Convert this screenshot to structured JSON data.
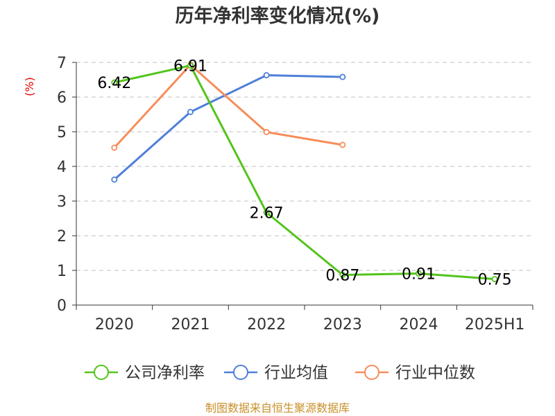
{
  "chart_data": {
    "type": "line",
    "title": "历年净利率变化情况(%)",
    "ylabel": "(%)",
    "categories": [
      "2020",
      "2021",
      "2022",
      "2023",
      "2024",
      "2025H1"
    ],
    "ylim": [
      0,
      7
    ],
    "yticks": [
      "0",
      "1",
      "2",
      "3",
      "4",
      "5",
      "6",
      "7"
    ],
    "grid": true,
    "legend_position": "bottom",
    "series": [
      {
        "name": "公司净利率",
        "color": "#52c41a",
        "values": [
          6.42,
          6.91,
          2.67,
          0.87,
          0.91,
          0.75
        ],
        "labels": [
          "6.42",
          "6.91",
          "2.67",
          "0.87",
          "0.91",
          "0.75"
        ]
      },
      {
        "name": "行业均值",
        "color": "#4e7fd9",
        "values": [
          3.62,
          5.57,
          6.63,
          6.58,
          null,
          null
        ]
      },
      {
        "name": "行业中位数",
        "color": "#f78c5a",
        "values": [
          4.54,
          6.93,
          4.99,
          4.62,
          null,
          null
        ]
      }
    ]
  },
  "source_text": "制图数据来自恒生聚源数据库"
}
